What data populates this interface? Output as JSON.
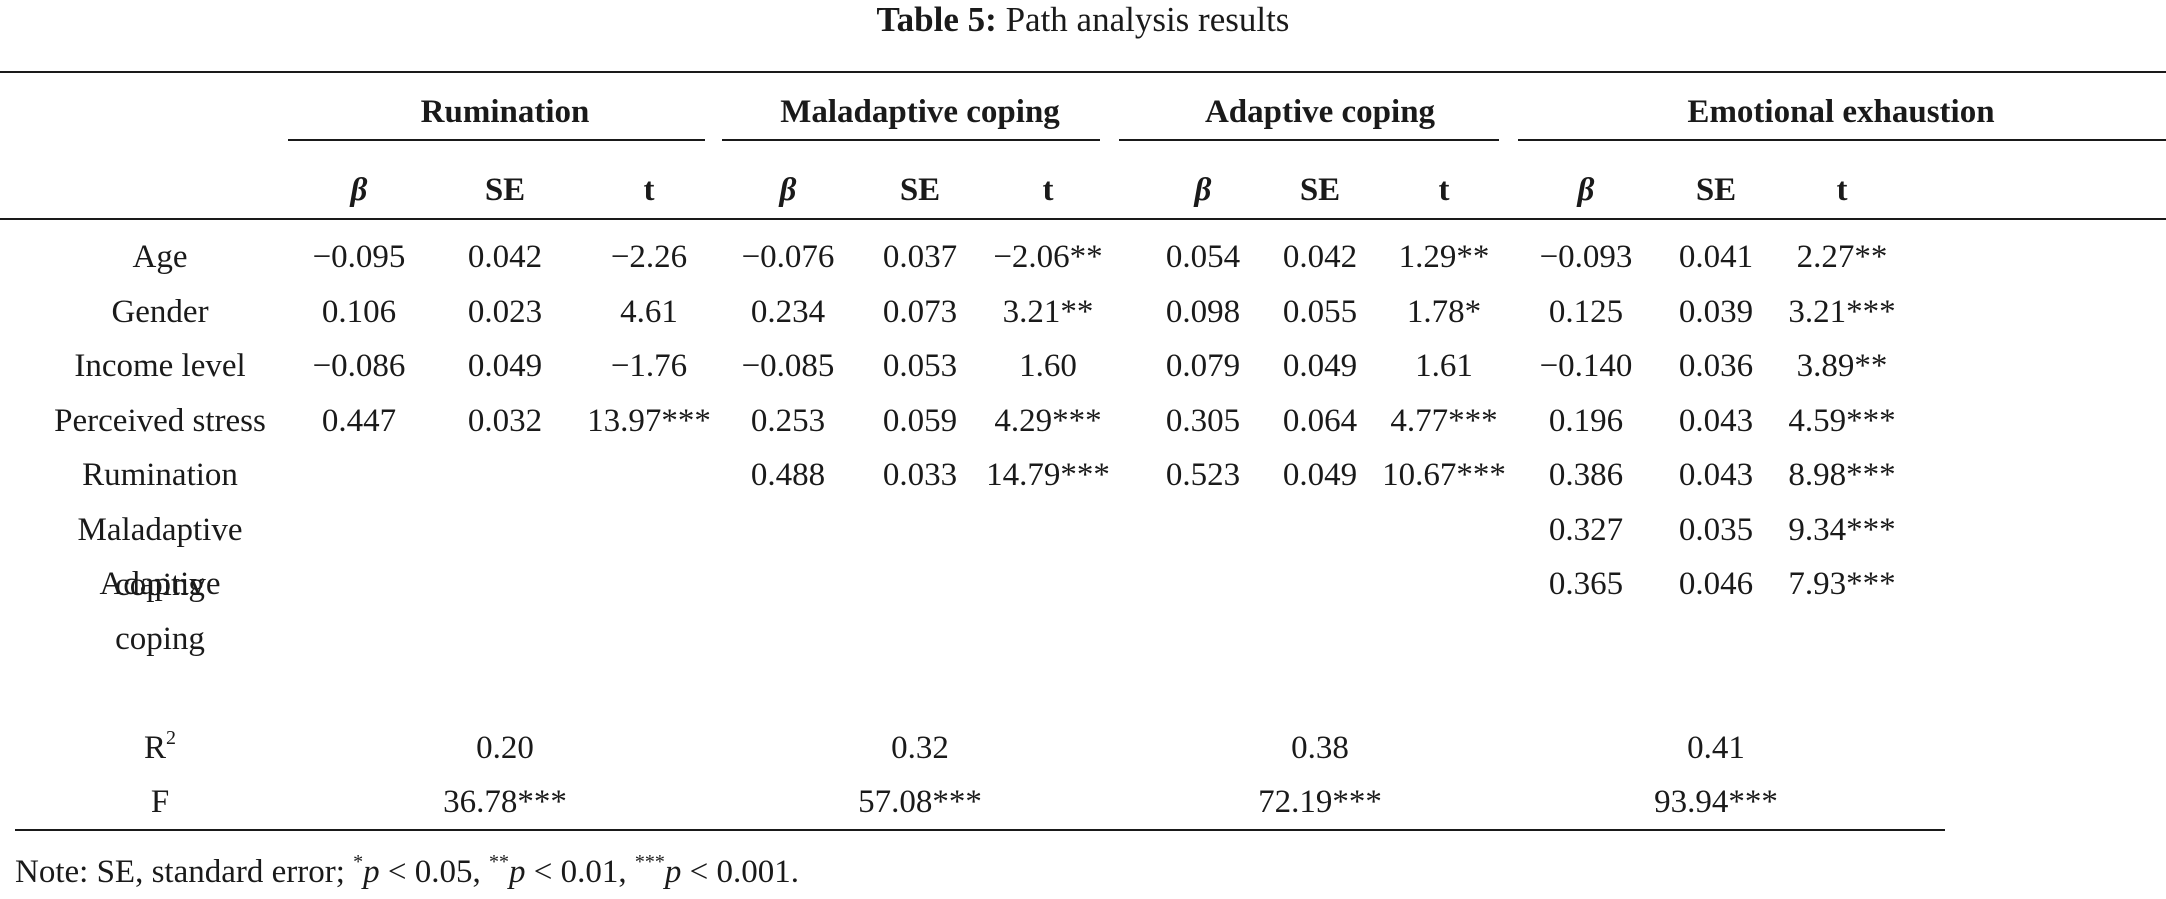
{
  "caption": {
    "label": "Table 5:",
    "text": "Path analysis results"
  },
  "groups": [
    "Rumination",
    "Maladaptive coping",
    "Adaptive coping",
    "Emotional exhaustion"
  ],
  "subheaders": [
    "β",
    "SE",
    "t"
  ],
  "rows": [
    {
      "label": [
        "Age"
      ],
      "cells": [
        "−0.095",
        "0.042",
        "−2.26",
        "−0.076",
        "0.037",
        "−2.06**",
        "0.054",
        "0.042",
        "1.29**",
        "−0.093",
        "0.041",
        "2.27**"
      ]
    },
    {
      "label": [
        "Gender"
      ],
      "cells": [
        "0.106",
        "0.023",
        "4.61",
        "0.234",
        "0.073",
        "3.21**",
        "0.098",
        "0.055",
        "1.78*",
        "0.125",
        "0.039",
        "3.21***"
      ]
    },
    {
      "label": [
        "Income level"
      ],
      "cells": [
        "−0.086",
        "0.049",
        "−1.76",
        "−0.085",
        "0.053",
        "1.60",
        "0.079",
        "0.049",
        "1.61",
        "−0.140",
        "0.036",
        "3.89**"
      ]
    },
    {
      "label": [
        "Perceived stress"
      ],
      "cells": [
        "0.447",
        "0.032",
        "13.97***",
        "0.253",
        "0.059",
        "4.29***",
        "0.305",
        "0.064",
        "4.77***",
        "0.196",
        "0.043",
        "4.59***"
      ]
    },
    {
      "label": [
        "Rumination"
      ],
      "cells": [
        "",
        "",
        "",
        "0.488",
        "0.033",
        "14.79***",
        "0.523",
        "0.049",
        "10.67***",
        "0.386",
        "0.043",
        "8.98***"
      ]
    },
    {
      "label": [
        "Maladaptive",
        "coping"
      ],
      "cells": [
        "",
        "",
        "",
        "",
        "",
        "",
        "",
        "",
        "",
        "0.327",
        "0.035",
        "9.34***"
      ]
    },
    {
      "label": [
        "Adaptive",
        "coping"
      ],
      "cells": [
        "",
        "",
        "",
        "",
        "",
        "",
        "",
        "",
        "",
        "0.365",
        "0.046",
        "7.93***"
      ]
    }
  ],
  "r2": {
    "label": "R",
    "sup": "2",
    "values": [
      "0.20",
      "0.32",
      "0.38",
      "0.41"
    ]
  },
  "f": {
    "label": "F",
    "values": [
      "36.78***",
      "57.08***",
      "72.19***",
      "93.94***"
    ]
  },
  "note": {
    "prefix": "Note: SE, standard error; ",
    "items": [
      {
        "stars": "*",
        "p": "p",
        "rest": " < 0.05, "
      },
      {
        "stars": "**",
        "p": "p",
        "rest": " < 0.01, "
      },
      {
        "stars": "***",
        "p": "p",
        "rest": " < 0.001."
      }
    ]
  }
}
